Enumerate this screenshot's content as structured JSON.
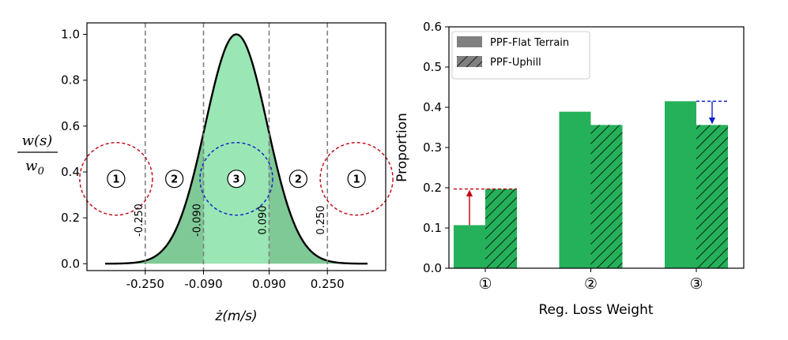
{
  "colors": {
    "fill_light": "#9ae6b4",
    "fill_dark": "#7fc996",
    "bar": "#25b05a",
    "red": "#c0000f",
    "blue": "#0a1ecc",
    "grey": "#7f7f7f"
  },
  "left": {
    "ylabel_num": "w(s)",
    "ylabel_den": "w",
    "ylabel_den_sub": "0",
    "xlabel": "ż(m/s)",
    "yticks": [
      "0.0",
      "0.2",
      "0.4",
      "0.6",
      "0.8",
      "1.0"
    ],
    "xticks": [
      "-0.250",
      "-0.090",
      "0.090",
      "0.250"
    ],
    "vline_labels": [
      "-0.250",
      "-0.090",
      "0.090",
      "0.250"
    ],
    "region_labels": [
      "1",
      "2",
      "3",
      "2",
      "1"
    ]
  },
  "chart_data": [
    {
      "type": "area",
      "title": "",
      "xlabel": "ż(m/s)",
      "ylabel": "w(s)/w0",
      "curve": "gaussian",
      "peak_x": 0.0,
      "peak_y": 1.0,
      "sigma": 0.085,
      "xlim": [
        -0.41,
        0.41
      ],
      "ylim": [
        -0.03,
        1.05
      ],
      "vlines": [
        -0.25,
        -0.09,
        0.09,
        0.25
      ],
      "grid": false
    },
    {
      "type": "bar",
      "title": "",
      "categories": [
        "①",
        "②",
        "③"
      ],
      "series": [
        {
          "name": "PPF-Flat Terrain",
          "values": [
            0.107,
            0.389,
            0.415
          ]
        },
        {
          "name": "PPF-Uphill",
          "values": [
            0.197,
            0.356,
            0.356
          ]
        }
      ],
      "xlabel": "Reg. Loss Weight",
      "ylabel": "Proportion",
      "ylim": [
        0.0,
        0.6
      ],
      "yticks": [
        "0.0",
        "0.1",
        "0.2",
        "0.3",
        "0.4",
        "0.5",
        "0.6"
      ],
      "legend": "top-left",
      "grid": false
    }
  ]
}
